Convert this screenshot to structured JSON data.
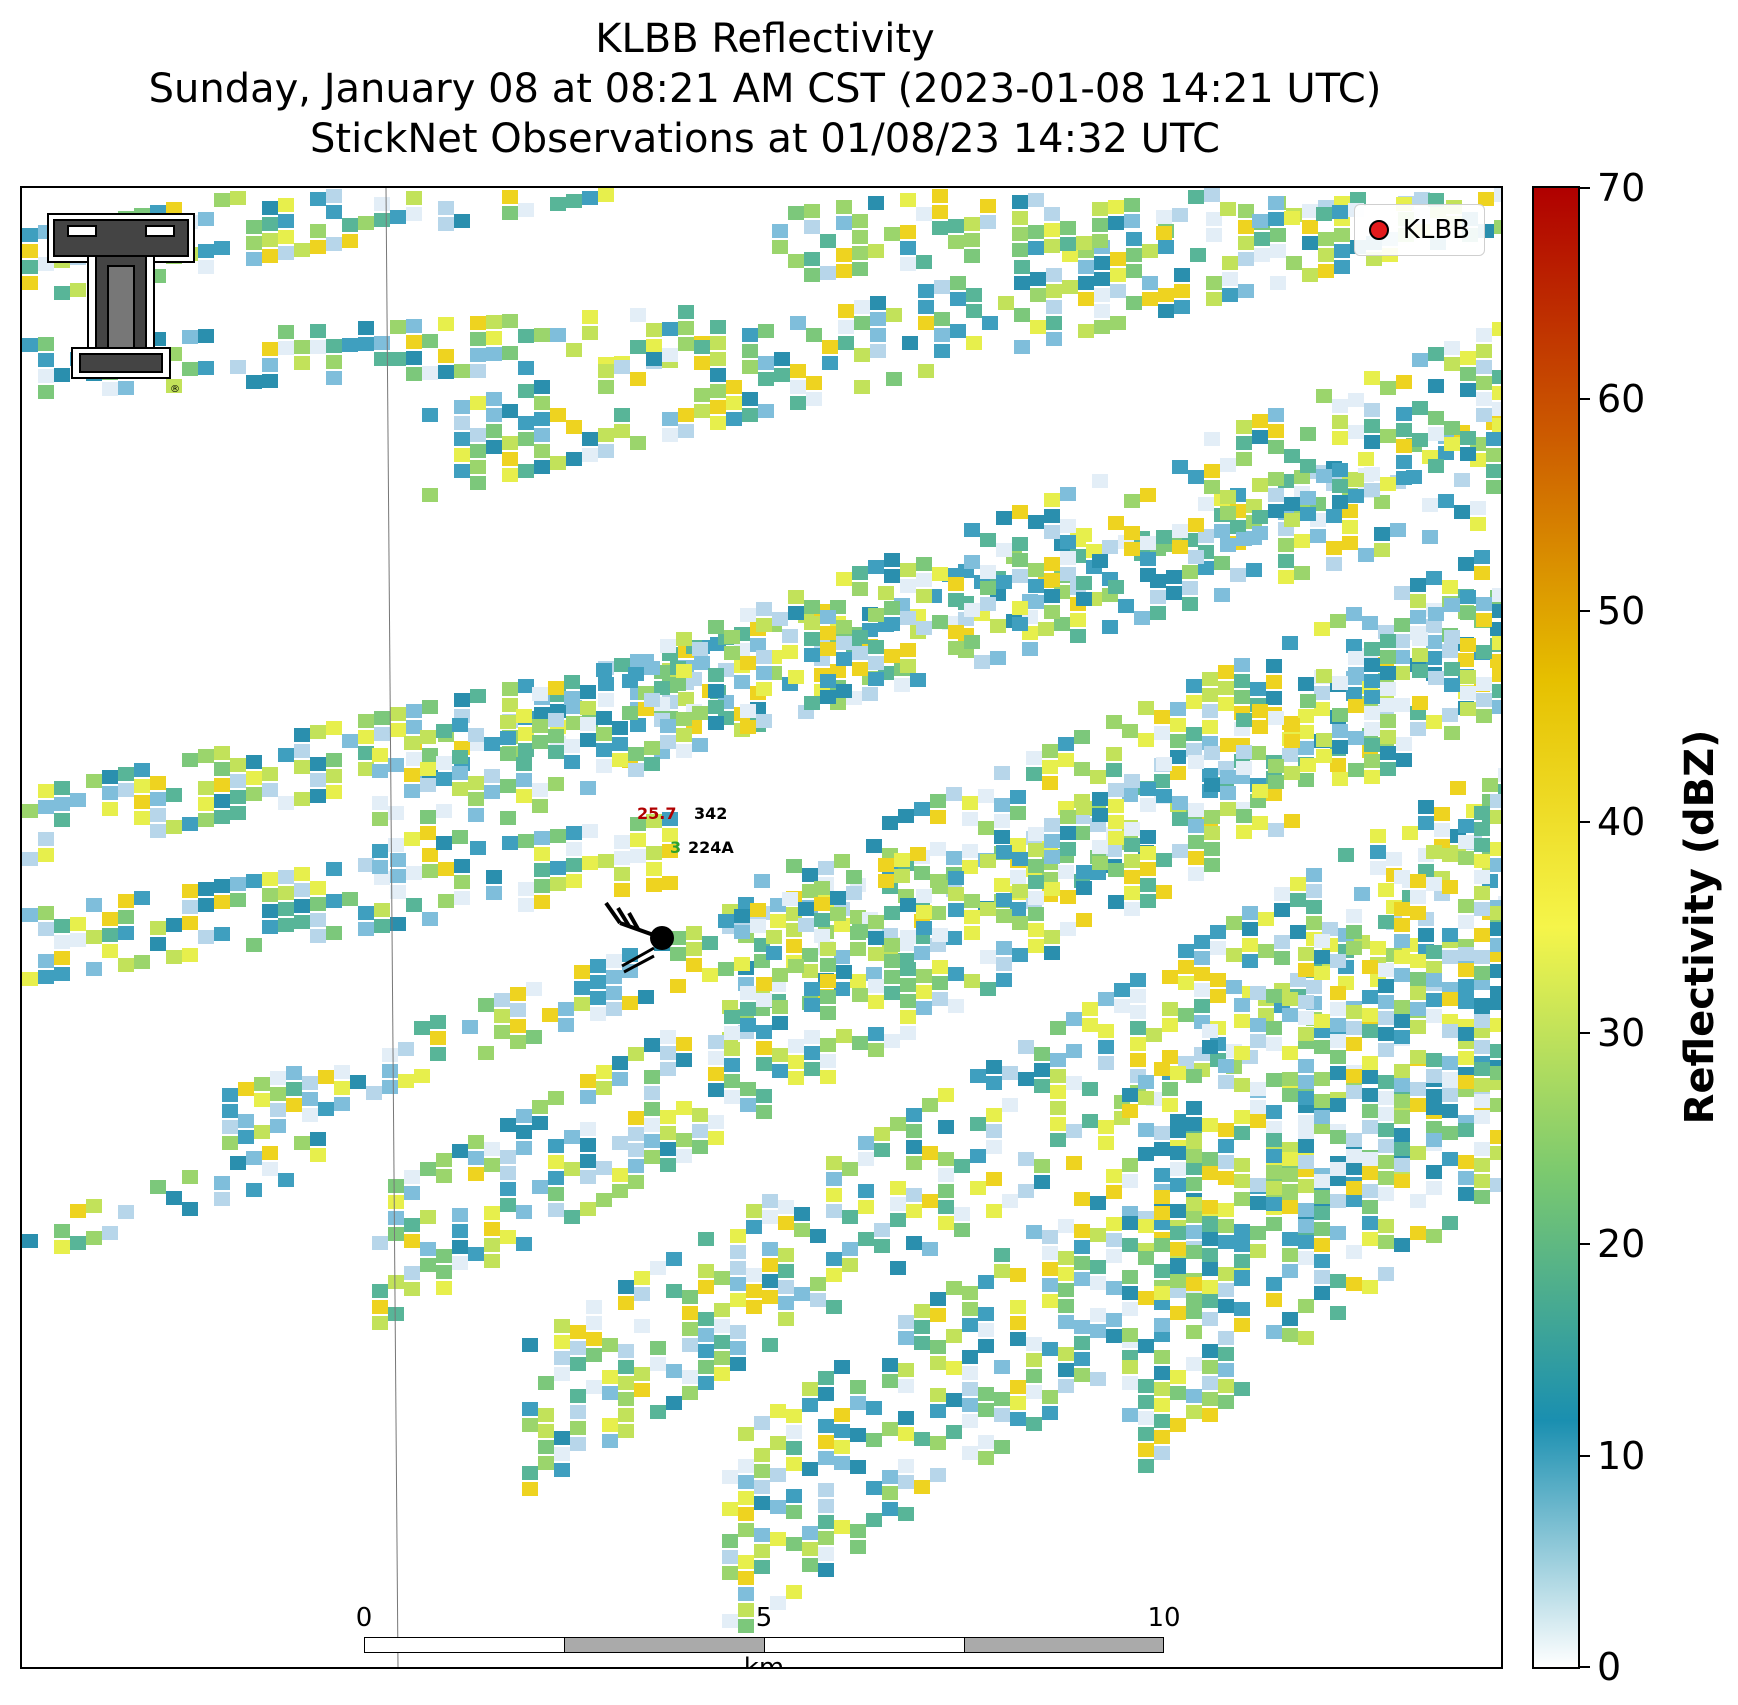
{
  "title": {
    "line1": "KLBB Reflectivity",
    "line2": "Sunday, January 08 at 08:21 AM CST (2023-01-08 14:21 UTC)",
    "line3": "StickNet Observations at 01/08/23 14:32 UTC"
  },
  "legend": {
    "label": "KLBB",
    "marker_color": "#e41a1c"
  },
  "station": {
    "temperature": "25.7",
    "temperature_color": "#b00000",
    "pressure_code": "342",
    "dewpoint": "3",
    "dewpoint_color": "#2ca02c",
    "station_id": "224A"
  },
  "scalebar": {
    "ticks": [
      "0",
      "5",
      "10"
    ],
    "unit": "km"
  },
  "colorbar": {
    "label": "Reflectivity (dBZ)",
    "min": 0,
    "max": 70,
    "ticks": [
      "0",
      "10",
      "20",
      "30",
      "40",
      "50",
      "60",
      "70"
    ],
    "colors": [
      "#ffffff",
      "#1a8fb0",
      "#7bc96f",
      "#f5f54a",
      "#e6c000",
      "#cc5a00",
      "#b00000"
    ]
  }
}
